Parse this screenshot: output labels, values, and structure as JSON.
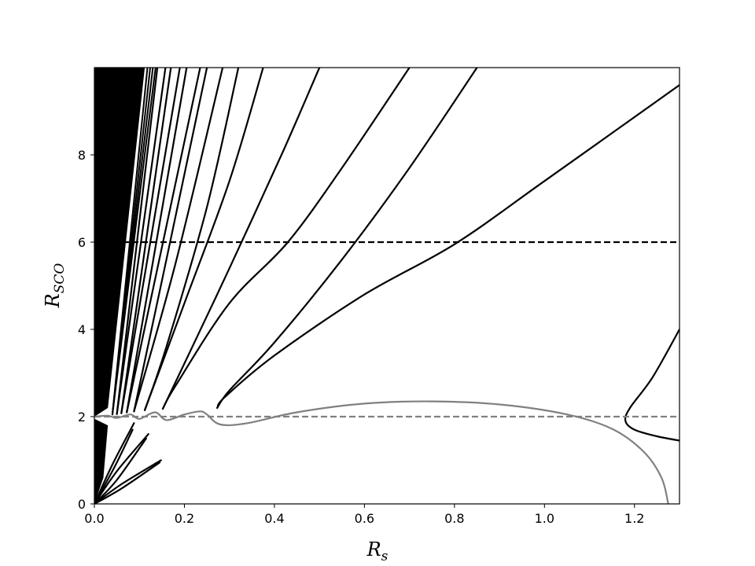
{
  "chart_data": {
    "type": "line",
    "title": "",
    "xlabel_main": "R",
    "xlabel_sub": "s",
    "ylabel_main": "R",
    "ylabel_sub": "SCO",
    "xlim": [
      0,
      1.3
    ],
    "ylim": [
      0,
      10
    ],
    "xticks": [
      0.0,
      0.2,
      0.4,
      0.6,
      0.8,
      1.0,
      1.2
    ],
    "xtick_labels": [
      "0.0",
      "0.2",
      "0.4",
      "0.6",
      "0.8",
      "1.0",
      "1.2"
    ],
    "yticks": [
      0,
      2,
      4,
      6,
      8
    ],
    "ytick_labels": [
      "0",
      "2",
      "4",
      "6",
      "8"
    ],
    "grid": false,
    "colors": {
      "black_curves": "#000000",
      "gray_curves": "#808080"
    },
    "reference_lines": [
      {
        "y": 6,
        "style": "dashed",
        "color": "#000000"
      },
      {
        "y": 2,
        "style": "dashed",
        "color": "#808080"
      }
    ],
    "black_lobes": [
      {
        "tip_x": 0.273,
        "tip_y": 2.2,
        "upper": [
          [
            0.273,
            2.2
          ],
          [
            0.29,
            2.45
          ],
          [
            0.4,
            3.4
          ],
          [
            0.6,
            4.8
          ],
          [
            0.8,
            5.95
          ],
          [
            1.0,
            7.4
          ],
          [
            1.3,
            9.6
          ]
        ],
        "lower": [
          [
            0.273,
            2.2
          ],
          [
            0.3,
            2.6
          ],
          [
            0.4,
            3.7
          ],
          [
            0.55,
            5.6
          ],
          [
            0.7,
            7.7
          ],
          [
            0.85,
            10.0
          ]
        ]
      },
      {
        "tip_x": 0.152,
        "tip_y": 2.18,
        "upper": [
          [
            0.152,
            2.18
          ],
          [
            0.18,
            2.7
          ],
          [
            0.3,
            4.6
          ],
          [
            0.43,
            6.0
          ],
          [
            0.55,
            7.7
          ],
          [
            0.7,
            10.0
          ]
        ],
        "lower": [
          [
            0.152,
            2.18
          ],
          [
            0.19,
            3.0
          ],
          [
            0.3,
            5.4
          ],
          [
            0.42,
            8.1
          ],
          [
            0.5,
            10.0
          ]
        ]
      },
      {
        "tip_x": 0.112,
        "tip_y": 2.15,
        "upper": [
          [
            0.112,
            2.15
          ],
          [
            0.2,
            4.6
          ],
          [
            0.3,
            7.4
          ],
          [
            0.375,
            10.0
          ]
        ],
        "lower": [
          [
            0.112,
            2.15
          ],
          [
            0.16,
            3.6
          ],
          [
            0.25,
            6.8
          ],
          [
            0.32,
            10.0
          ]
        ]
      },
      {
        "tip_x": 0.088,
        "tip_y": 2.12,
        "upper": [
          [
            0.088,
            2.12
          ],
          [
            0.18,
            5.5
          ],
          [
            0.285,
            10.0
          ]
        ],
        "lower": [
          [
            0.088,
            2.12
          ],
          [
            0.16,
            5.6
          ],
          [
            0.25,
            10.0
          ]
        ]
      },
      {
        "tip_x": 0.072,
        "tip_y": 2.1,
        "upper": [
          [
            0.072,
            2.1
          ],
          [
            0.235,
            10.0
          ]
        ],
        "lower": [
          [
            0.072,
            2.1
          ],
          [
            0.205,
            10.0
          ]
        ]
      },
      {
        "tip_x": 0.06,
        "tip_y": 2.08,
        "upper": [
          [
            0.06,
            2.08
          ],
          [
            0.19,
            10.0
          ]
        ],
        "lower": [
          [
            0.06,
            2.08
          ],
          [
            0.17,
            10.0
          ]
        ]
      },
      {
        "tip_x": 0.05,
        "tip_y": 2.06,
        "upper": [
          [
            0.05,
            2.06
          ],
          [
            0.158,
            10.0
          ]
        ],
        "lower": [
          [
            0.05,
            2.06
          ],
          [
            0.14,
            10.0
          ]
        ]
      }
    ],
    "lower_black_lobes": [
      {
        "upper": [
          [
            0.0,
            0.0
          ],
          [
            0.06,
            0.45
          ],
          [
            0.148,
            1.0
          ]
        ],
        "lower": [
          [
            0.0,
            0.0
          ],
          [
            0.06,
            0.35
          ],
          [
            0.145,
            0.95
          ]
        ]
      },
      {
        "upper": [
          [
            0.0,
            0.0
          ],
          [
            0.05,
            0.75
          ],
          [
            0.12,
            1.6
          ]
        ],
        "lower": [
          [
            0.0,
            0.0
          ],
          [
            0.05,
            0.55
          ],
          [
            0.115,
            1.5
          ]
        ]
      },
      {
        "upper": [
          [
            0.0,
            0.0
          ],
          [
            0.04,
            0.9
          ],
          [
            0.088,
            1.85
          ]
        ],
        "lower": [
          [
            0.0,
            0.0
          ],
          [
            0.045,
            0.85
          ],
          [
            0.085,
            1.7
          ]
        ]
      }
    ],
    "right_black_curve": [
      [
        1.3,
        4.0
      ],
      [
        1.24,
        2.9
      ],
      [
        1.19,
        2.2
      ],
      [
        1.18,
        1.9
      ],
      [
        1.2,
        1.7
      ],
      [
        1.25,
        1.55
      ],
      [
        1.3,
        1.45
      ]
    ],
    "gray_curve": [
      [
        0.0,
        2.0
      ],
      [
        0.03,
        2.02
      ],
      [
        0.05,
        1.97
      ],
      [
        0.08,
        2.05
      ],
      [
        0.1,
        1.95
      ],
      [
        0.135,
        2.1
      ],
      [
        0.16,
        1.92
      ],
      [
        0.2,
        2.05
      ],
      [
        0.235,
        2.12
      ],
      [
        0.25,
        2.05
      ],
      [
        0.28,
        1.82
      ],
      [
        0.34,
        1.85
      ],
      [
        0.45,
        2.1
      ],
      [
        0.6,
        2.3
      ],
      [
        0.75,
        2.35
      ],
      [
        0.9,
        2.28
      ],
      [
        1.05,
        2.05
      ],
      [
        1.15,
        1.72
      ],
      [
        1.22,
        1.2
      ],
      [
        1.26,
        0.6
      ],
      [
        1.275,
        0.0
      ]
    ],
    "dense_band": {
      "x_from": 0.0,
      "x_to": 0.1,
      "note_hidden": true
    }
  }
}
